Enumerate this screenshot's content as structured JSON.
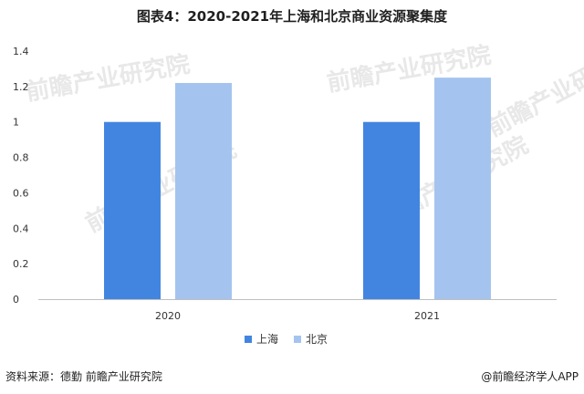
{
  "title": "图表4：2020-2021年上海和北京商业资源聚集度",
  "source": "资料来源：德勤 前瞻产业研究院",
  "credit": "@前瞻经济学人APP",
  "watermark": "前瞻产业研究院",
  "colors": {
    "shanghai": "#4285e0",
    "beijing": "#a4c4ef",
    "axis": "#bfbfbf"
  },
  "chart_data": {
    "type": "bar",
    "categories": [
      "2020",
      "2021"
    ],
    "series": [
      {
        "name": "上海",
        "values": [
          1.0,
          1.0
        ]
      },
      {
        "name": "北京",
        "values": [
          1.22,
          1.25
        ]
      }
    ],
    "ylim": [
      0,
      1.4
    ],
    "yticks": [
      "0",
      "0.2",
      "0.4",
      "0.6",
      "0.8",
      "1",
      "1.2",
      "1.4"
    ],
    "xlabel": "",
    "ylabel": "",
    "grid": false,
    "legend": "bottom-center"
  }
}
